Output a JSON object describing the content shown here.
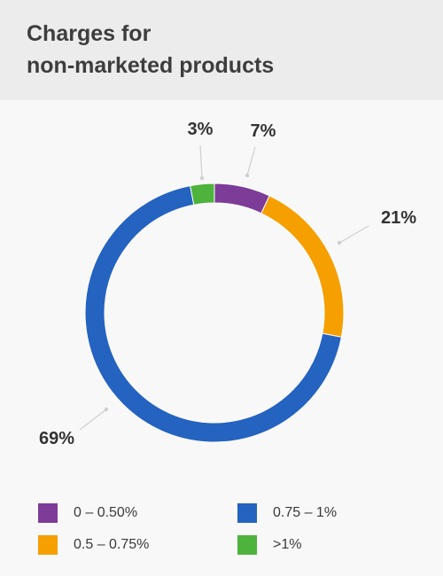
{
  "header": {
    "title": "Charges for\nnon-marketed products"
  },
  "chart_data": {
    "type": "donut",
    "title": "Charges for non-marketed products",
    "slices": [
      {
        "label": "0 – 0.50%",
        "value": 7,
        "display": "7%",
        "color": "#7d3c98"
      },
      {
        "label": "0.5 – 0.75%",
        "value": 21,
        "display": "21%",
        "color": "#f59f00"
      },
      {
        "label": "0.75 – 1%",
        "value": 69,
        "display": "69%",
        "color": "#2563c0"
      },
      {
        "label": ">1%",
        "value": 3,
        "display": "3%",
        "color": "#4db33d"
      }
    ]
  },
  "legend": {
    "items": [
      {
        "label": "0 – 0.50%",
        "color": "#7d3c98"
      },
      {
        "label": "0.75 – 1%",
        "color": "#2563c0"
      },
      {
        "label": "0.5 – 0.75%",
        "color": "#f59f00"
      },
      {
        "label": ">1%",
        "color": "#4db33d"
      }
    ]
  }
}
